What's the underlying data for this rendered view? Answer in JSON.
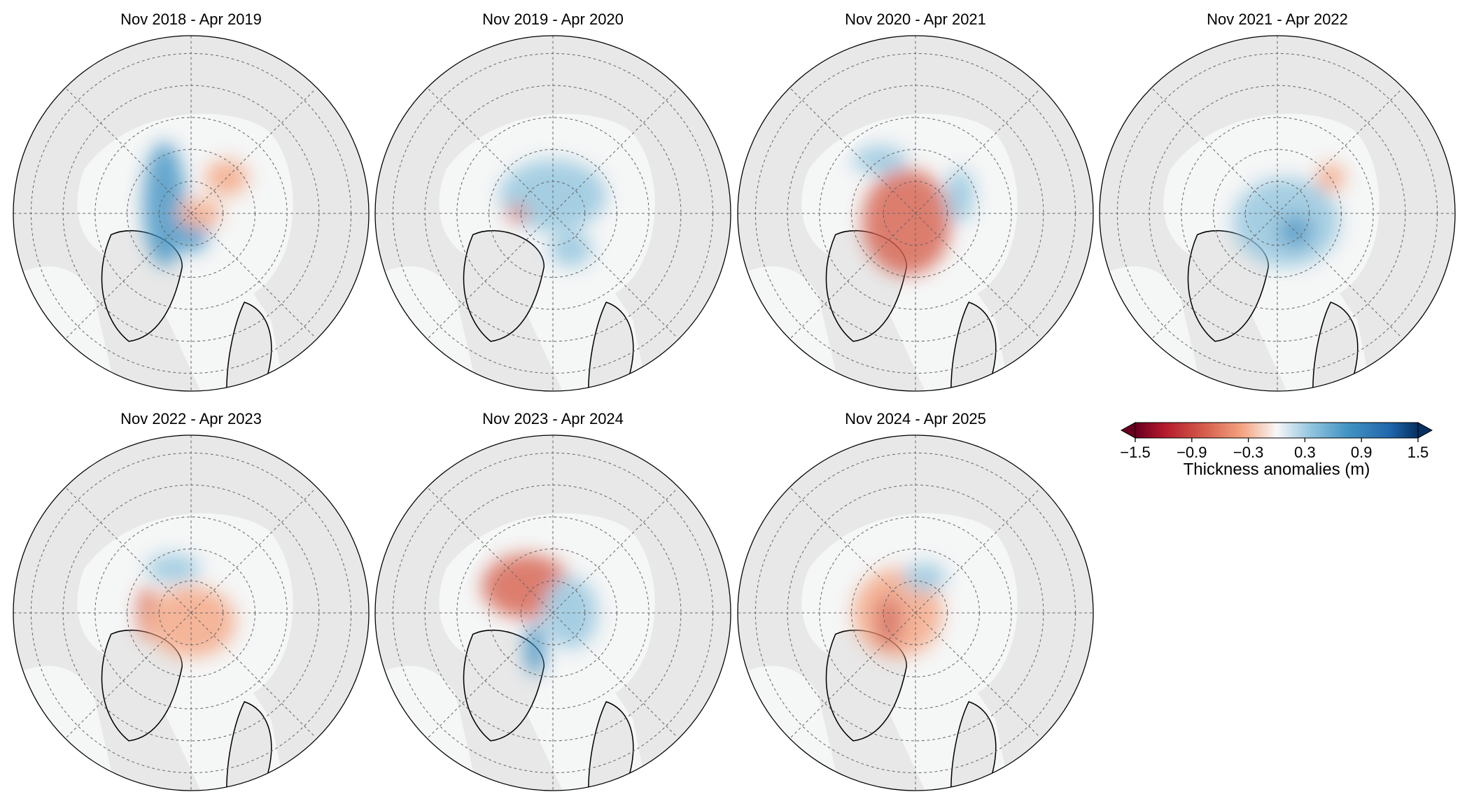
{
  "panels": [
    {
      "title": "Nov 2018 - Apr 2019"
    },
    {
      "title": "Nov 2019 - Apr 2020"
    },
    {
      "title": "Nov 2020 - Apr 2021"
    },
    {
      "title": "Nov 2021 - Apr 2022"
    },
    {
      "title": "Nov 2022 - Apr 2023"
    },
    {
      "title": "Nov 2023 - Apr 2024"
    },
    {
      "title": "Nov 2024 - Apr 2025"
    }
  ],
  "colorbar": {
    "label": "Thickness anomalies (m)",
    "lim": [
      -1.5,
      1.5
    ],
    "ticks": [
      {
        "value": -1.5,
        "label": "−1.5"
      },
      {
        "value": -0.9,
        "label": "−0.9"
      },
      {
        "value": -0.3,
        "label": "−0.3"
      },
      0.3,
      0.9,
      1.5
    ]
  }
}
